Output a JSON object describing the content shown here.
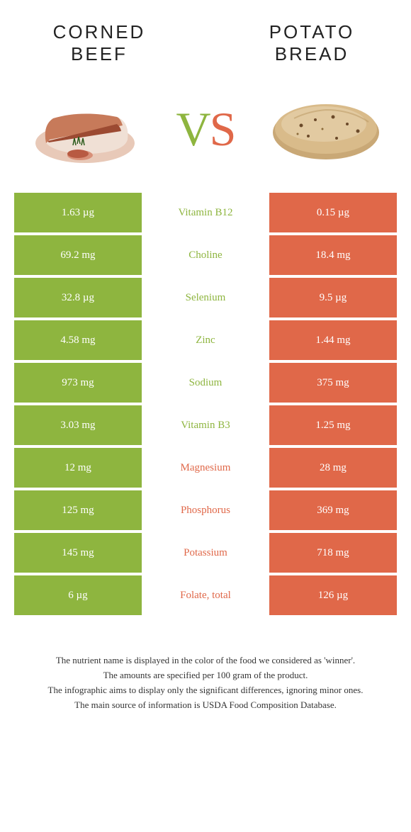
{
  "colors": {
    "green": "#8eb53f",
    "orange": "#e06849",
    "white": "#ffffff"
  },
  "food_left": {
    "title_line1": "CORNED",
    "title_line2": "BEEF"
  },
  "food_right": {
    "title_line1": "POTATO",
    "title_line2": "BREAD"
  },
  "vs": {
    "v": "V",
    "s": "S"
  },
  "rows": [
    {
      "left": "1.63 µg",
      "mid": "Vitamin B12",
      "right": "0.15 µg",
      "winner": "left"
    },
    {
      "left": "69.2 mg",
      "mid": "Choline",
      "right": "18.4 mg",
      "winner": "left"
    },
    {
      "left": "32.8 µg",
      "mid": "Selenium",
      "right": "9.5 µg",
      "winner": "left"
    },
    {
      "left": "4.58 mg",
      "mid": "Zinc",
      "right": "1.44 mg",
      "winner": "left"
    },
    {
      "left": "973 mg",
      "mid": "Sodium",
      "right": "375 mg",
      "winner": "left"
    },
    {
      "left": "3.03 mg",
      "mid": "Vitamin B3",
      "right": "1.25 mg",
      "winner": "left"
    },
    {
      "left": "12 mg",
      "mid": "Magnesium",
      "right": "28 mg",
      "winner": "right"
    },
    {
      "left": "125 mg",
      "mid": "Phosphorus",
      "right": "369 mg",
      "winner": "right"
    },
    {
      "left": "145 mg",
      "mid": "Potassium",
      "right": "718 mg",
      "winner": "right"
    },
    {
      "left": "6 µg",
      "mid": "Folate, total",
      "right": "126 µg",
      "winner": "right"
    }
  ],
  "footer": {
    "line1": "The nutrient name is displayed in the color of the food we considered as 'winner'.",
    "line2": "The amounts are specified per 100 gram of the product.",
    "line3": "The infographic aims to display only the significant differences, ignoring minor ones.",
    "line4": "The main source of information is USDA Food Composition Database."
  }
}
